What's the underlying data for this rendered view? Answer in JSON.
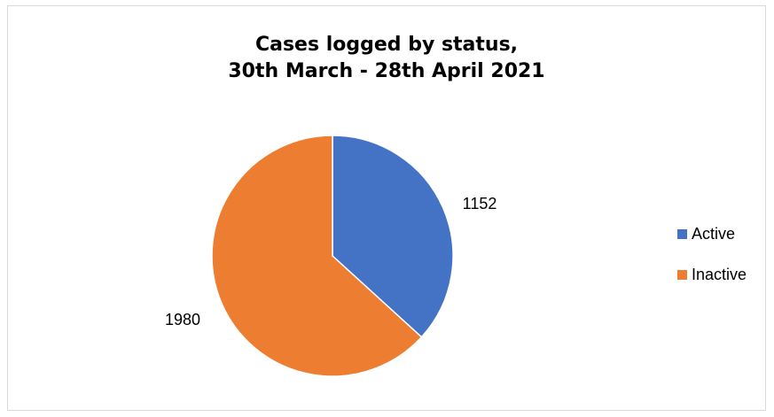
{
  "chart_data": {
    "type": "pie",
    "title": [
      "Cases logged by status,",
      "30th March - 28th April 2021"
    ],
    "categories": [
      "Active",
      "Inactive"
    ],
    "values": [
      1152,
      1980
    ],
    "colors": [
      "#4472c4",
      "#ed7d31"
    ],
    "data_labels": [
      "1152",
      "1980"
    ],
    "legend": {
      "placement": "right",
      "entries": [
        "Active",
        "Inactive"
      ]
    }
  }
}
